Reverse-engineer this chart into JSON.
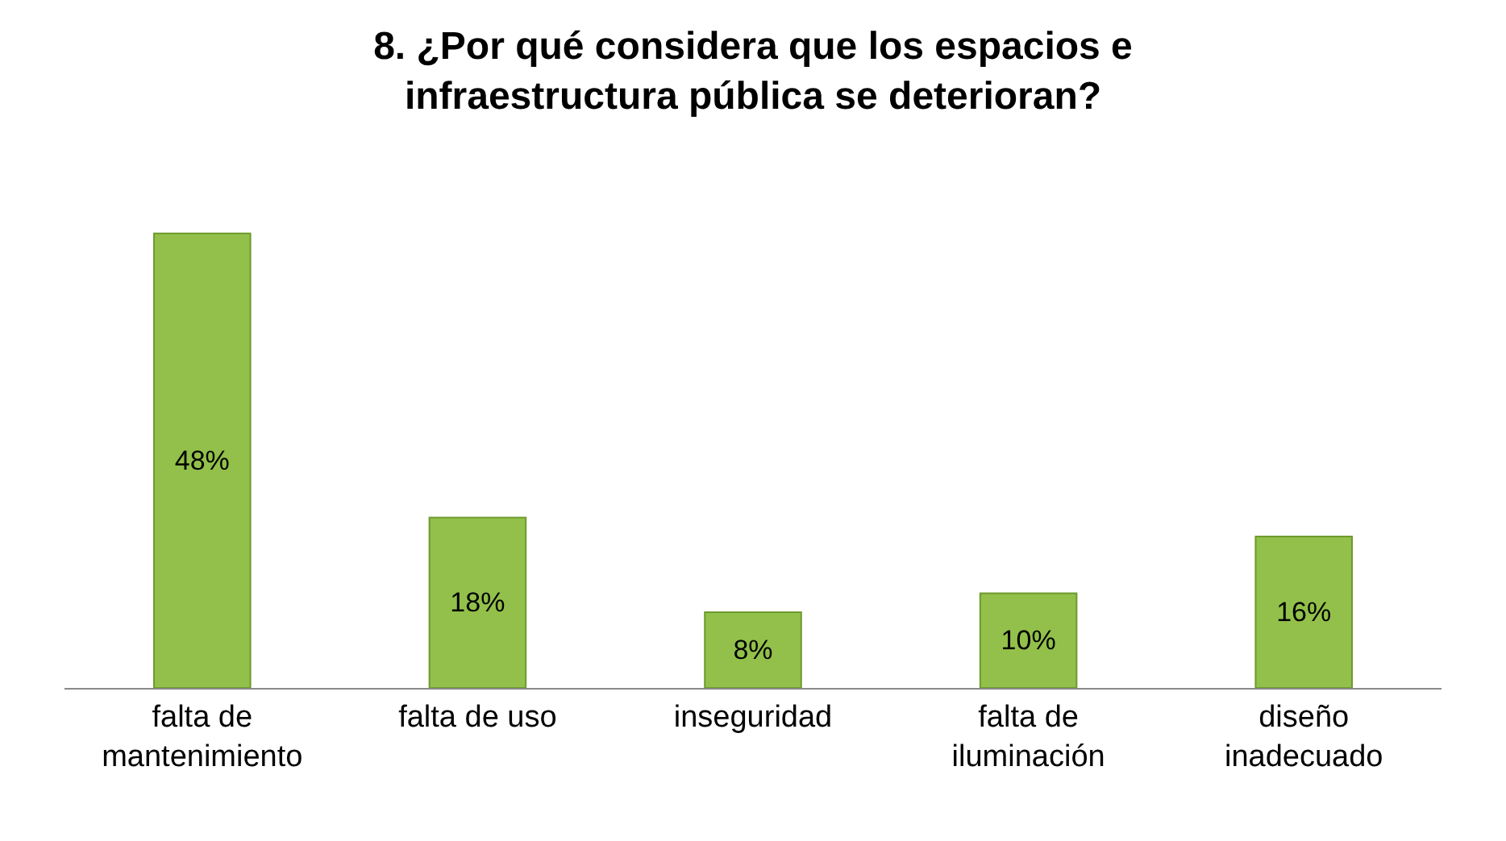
{
  "chart_data": {
    "type": "bar",
    "title": "8. ¿Por qué considera que los espacios e\ninfraestructura pública se deterioran?",
    "categories": [
      "falta de\nmantenimiento",
      "falta de uso",
      "inseguridad",
      "falta de\niluminación",
      "diseño\ninadecuado"
    ],
    "values": [
      48,
      18,
      8,
      10,
      16
    ],
    "value_labels": [
      "48%",
      "18%",
      "8%",
      "10%",
      "16%"
    ],
    "color": "#92c04a"
  }
}
